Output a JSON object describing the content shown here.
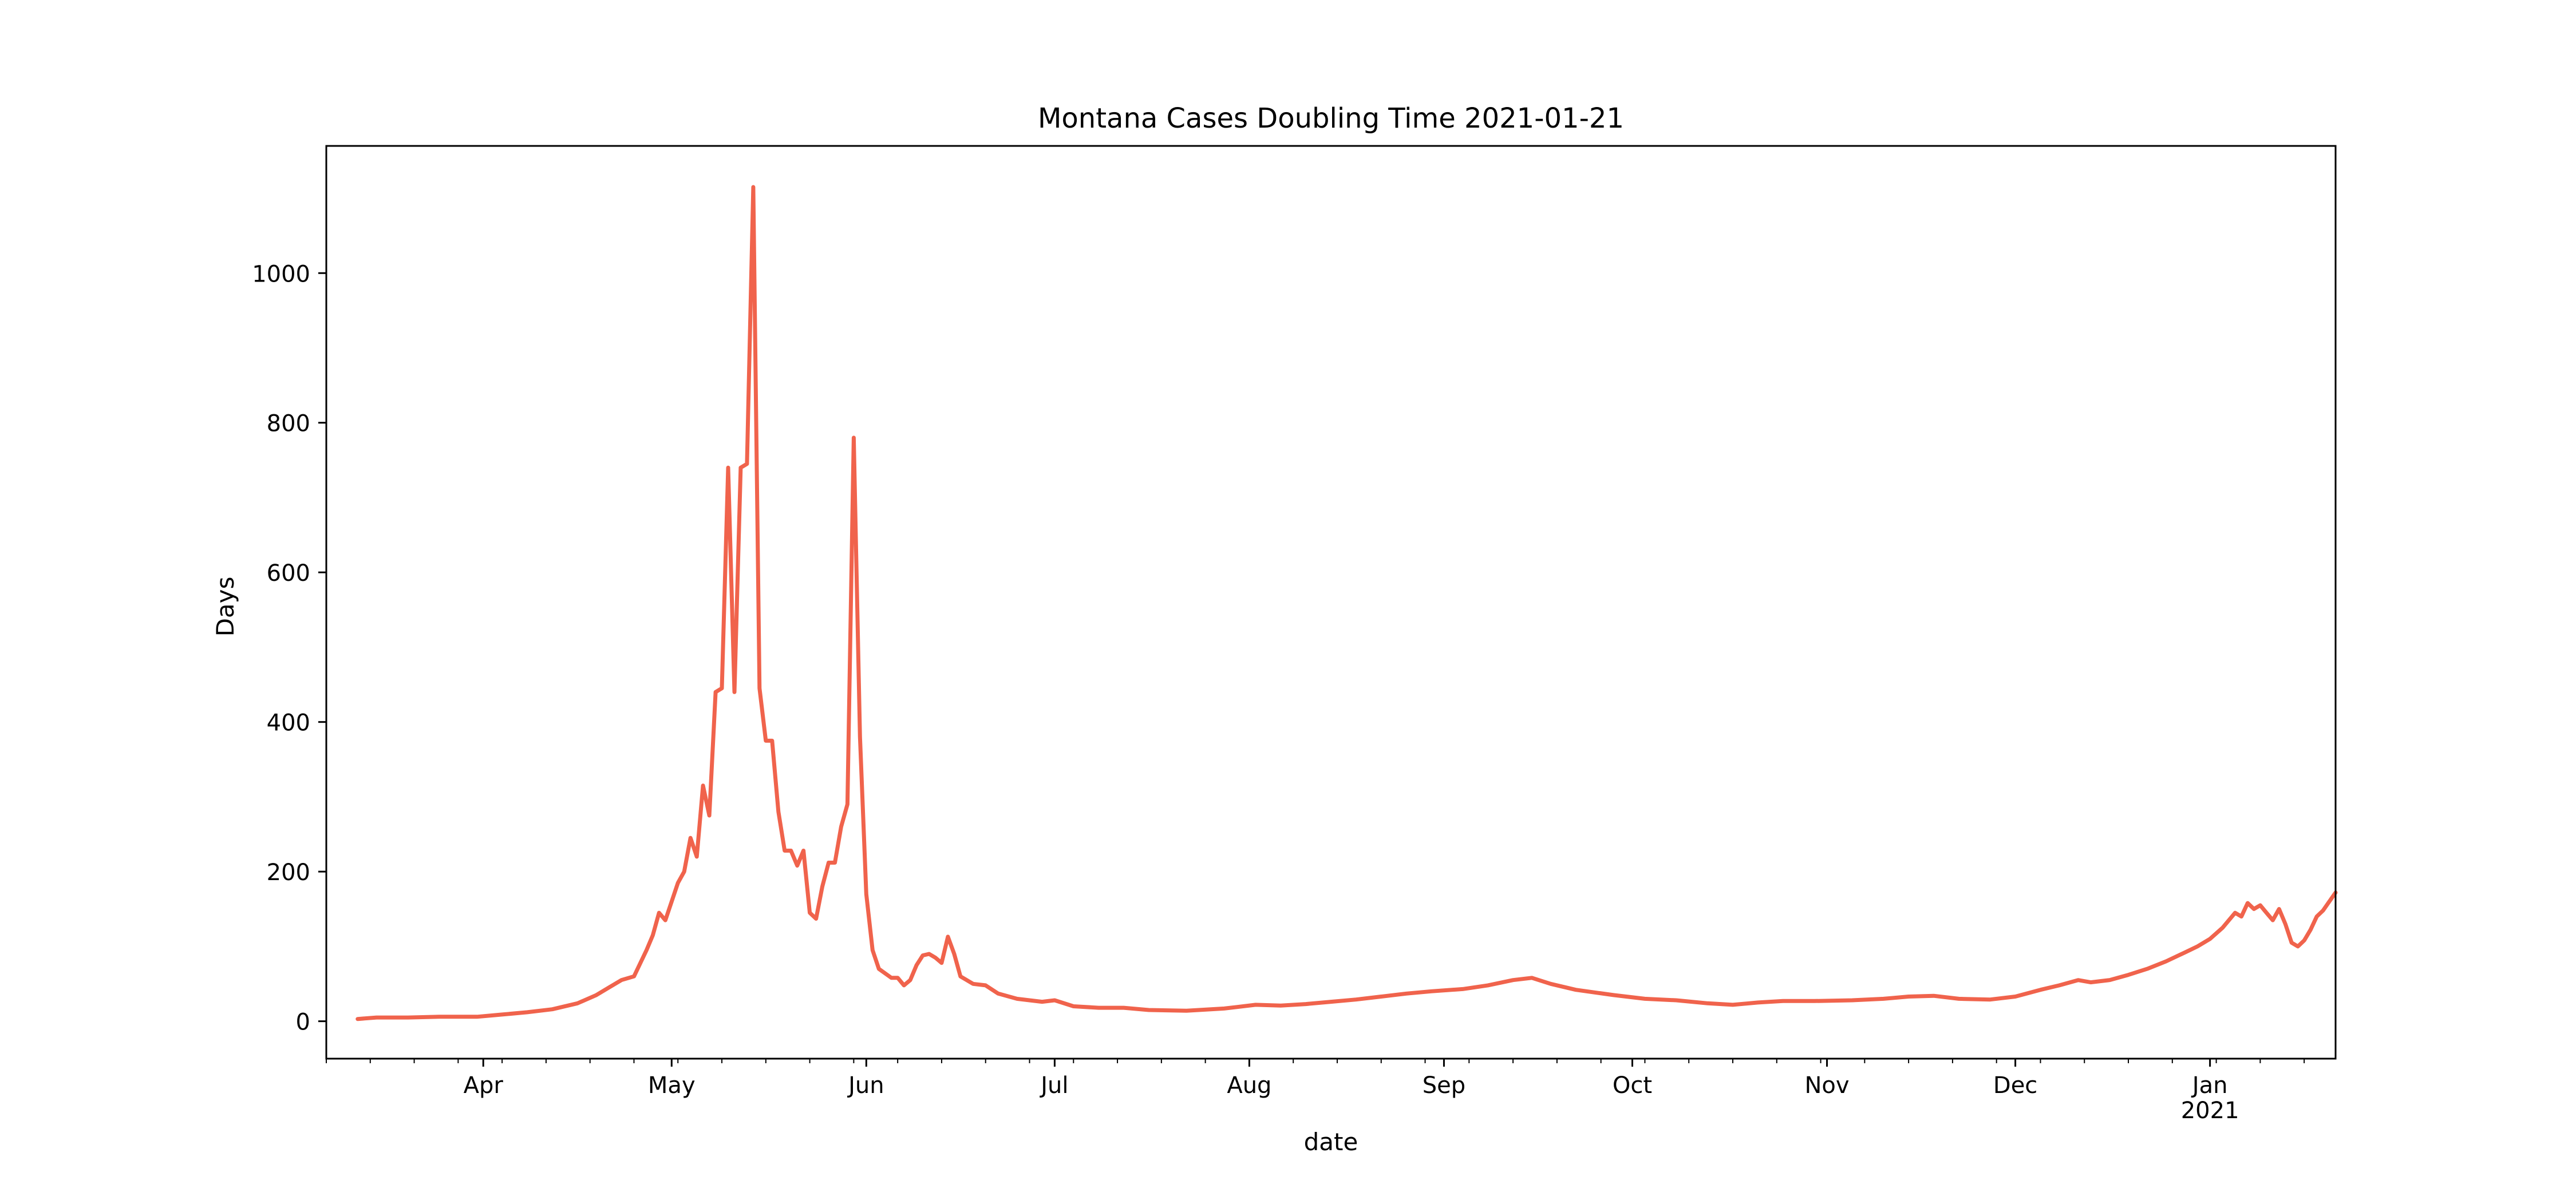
{
  "chart_data": {
    "type": "line",
    "title": "Montana Cases Doubling Time 2021-01-21",
    "xlabel": "date",
    "ylabel": "Days",
    "xlim": [
      "2020-03-07",
      "2021-01-21"
    ],
    "ylim": [
      -50,
      1170
    ],
    "y_ticks": [
      0,
      200,
      400,
      600,
      800,
      1000
    ],
    "x_ticks": [
      {
        "date": "2020-04-01",
        "label": "Apr",
        "sublabel": ""
      },
      {
        "date": "2020-05-01",
        "label": "May",
        "sublabel": ""
      },
      {
        "date": "2020-06-01",
        "label": "Jun",
        "sublabel": ""
      },
      {
        "date": "2020-07-01",
        "label": "Jul",
        "sublabel": ""
      },
      {
        "date": "2020-08-01",
        "label": "Aug",
        "sublabel": ""
      },
      {
        "date": "2020-09-01",
        "label": "Sep",
        "sublabel": ""
      },
      {
        "date": "2020-10-01",
        "label": "Oct",
        "sublabel": ""
      },
      {
        "date": "2020-11-01",
        "label": "Nov",
        "sublabel": ""
      },
      {
        "date": "2020-12-01",
        "label": "Dec",
        "sublabel": ""
      },
      {
        "date": "2021-01-01",
        "label": "Jan",
        "sublabel": "2021"
      }
    ],
    "grid": false,
    "legend": "none",
    "line_color": "#f0634c",
    "series": [
      {
        "points": [
          [
            "2020-03-12",
            3
          ],
          [
            "2020-03-15",
            5
          ],
          [
            "2020-03-20",
            5
          ],
          [
            "2020-03-25",
            6
          ],
          [
            "2020-03-31",
            6
          ],
          [
            "2020-04-04",
            9
          ],
          [
            "2020-04-08",
            12
          ],
          [
            "2020-04-12",
            16
          ],
          [
            "2020-04-16",
            24
          ],
          [
            "2020-04-19",
            35
          ],
          [
            "2020-04-21",
            45
          ],
          [
            "2020-04-23",
            55
          ],
          [
            "2020-04-25",
            60
          ],
          [
            "2020-04-27",
            95
          ],
          [
            "2020-04-28",
            115
          ],
          [
            "2020-04-29",
            145
          ],
          [
            "2020-04-30",
            135
          ],
          [
            "2020-05-01",
            160
          ],
          [
            "2020-05-02",
            185
          ],
          [
            "2020-05-03",
            200
          ],
          [
            "2020-05-04",
            245
          ],
          [
            "2020-05-05",
            220
          ],
          [
            "2020-05-06",
            315
          ],
          [
            "2020-05-07",
            275
          ],
          [
            "2020-05-08",
            440
          ],
          [
            "2020-05-09",
            445
          ],
          [
            "2020-05-10",
            740
          ],
          [
            "2020-05-11",
            440
          ],
          [
            "2020-05-12",
            740
          ],
          [
            "2020-05-13",
            745
          ],
          [
            "2020-05-14",
            1115
          ],
          [
            "2020-05-15",
            445
          ],
          [
            "2020-05-16",
            375
          ],
          [
            "2020-05-17",
            375
          ],
          [
            "2020-05-18",
            280
          ],
          [
            "2020-05-19",
            228
          ],
          [
            "2020-05-20",
            228
          ],
          [
            "2020-05-21",
            208
          ],
          [
            "2020-05-22",
            228
          ],
          [
            "2020-05-23",
            145
          ],
          [
            "2020-05-24",
            137
          ],
          [
            "2020-05-25",
            180
          ],
          [
            "2020-05-26",
            212
          ],
          [
            "2020-05-27",
            212
          ],
          [
            "2020-05-28",
            260
          ],
          [
            "2020-05-29",
            290
          ],
          [
            "2020-05-30",
            780
          ],
          [
            "2020-05-31",
            380
          ],
          [
            "2020-06-01",
            170
          ],
          [
            "2020-06-02",
            95
          ],
          [
            "2020-06-03",
            70
          ],
          [
            "2020-06-05",
            58
          ],
          [
            "2020-06-06",
            58
          ],
          [
            "2020-06-07",
            48
          ],
          [
            "2020-06-08",
            55
          ],
          [
            "2020-06-09",
            75
          ],
          [
            "2020-06-10",
            88
          ],
          [
            "2020-06-11",
            90
          ],
          [
            "2020-06-12",
            85
          ],
          [
            "2020-06-13",
            78
          ],
          [
            "2020-06-14",
            113
          ],
          [
            "2020-06-15",
            90
          ],
          [
            "2020-06-16",
            60
          ],
          [
            "2020-06-18",
            50
          ],
          [
            "2020-06-20",
            48
          ],
          [
            "2020-06-22",
            37
          ],
          [
            "2020-06-25",
            30
          ],
          [
            "2020-06-29",
            26
          ],
          [
            "2020-07-01",
            28
          ],
          [
            "2020-07-04",
            20
          ],
          [
            "2020-07-08",
            18
          ],
          [
            "2020-07-12",
            18
          ],
          [
            "2020-07-16",
            15
          ],
          [
            "2020-07-22",
            14
          ],
          [
            "2020-07-28",
            17
          ],
          [
            "2020-08-02",
            22
          ],
          [
            "2020-08-06",
            21
          ],
          [
            "2020-08-10",
            23
          ],
          [
            "2020-08-14",
            26
          ],
          [
            "2020-08-18",
            29
          ],
          [
            "2020-08-22",
            33
          ],
          [
            "2020-08-26",
            37
          ],
          [
            "2020-08-30",
            40
          ],
          [
            "2020-09-04",
            43
          ],
          [
            "2020-09-08",
            48
          ],
          [
            "2020-09-12",
            55
          ],
          [
            "2020-09-15",
            58
          ],
          [
            "2020-09-18",
            50
          ],
          [
            "2020-09-22",
            42
          ],
          [
            "2020-09-28",
            35
          ],
          [
            "2020-10-03",
            30
          ],
          [
            "2020-10-08",
            28
          ],
          [
            "2020-10-13",
            24
          ],
          [
            "2020-10-17",
            22
          ],
          [
            "2020-10-21",
            25
          ],
          [
            "2020-10-25",
            27
          ],
          [
            "2020-10-30",
            27
          ],
          [
            "2020-11-05",
            28
          ],
          [
            "2020-11-10",
            30
          ],
          [
            "2020-11-14",
            33
          ],
          [
            "2020-11-18",
            34
          ],
          [
            "2020-11-22",
            30
          ],
          [
            "2020-11-27",
            29
          ],
          [
            "2020-12-01",
            33
          ],
          [
            "2020-12-05",
            42
          ],
          [
            "2020-12-08",
            48
          ],
          [
            "2020-12-11",
            55
          ],
          [
            "2020-12-13",
            52
          ],
          [
            "2020-12-16",
            55
          ],
          [
            "2020-12-19",
            62
          ],
          [
            "2020-12-22",
            70
          ],
          [
            "2020-12-25",
            80
          ],
          [
            "2020-12-28",
            92
          ],
          [
            "2020-12-30",
            100
          ],
          [
            "2021-01-01",
            110
          ],
          [
            "2021-01-03",
            125
          ],
          [
            "2021-01-05",
            145
          ],
          [
            "2021-01-06",
            140
          ],
          [
            "2021-01-07",
            158
          ],
          [
            "2021-01-08",
            150
          ],
          [
            "2021-01-09",
            155
          ],
          [
            "2021-01-10",
            145
          ],
          [
            "2021-01-11",
            135
          ],
          [
            "2021-01-12",
            150
          ],
          [
            "2021-01-13",
            130
          ],
          [
            "2021-01-14",
            105
          ],
          [
            "2021-01-15",
            100
          ],
          [
            "2021-01-16",
            108
          ],
          [
            "2021-01-17",
            122
          ],
          [
            "2021-01-18",
            140
          ],
          [
            "2021-01-19",
            148
          ],
          [
            "2021-01-20",
            160
          ],
          [
            "2021-01-21",
            172
          ]
        ]
      }
    ]
  }
}
